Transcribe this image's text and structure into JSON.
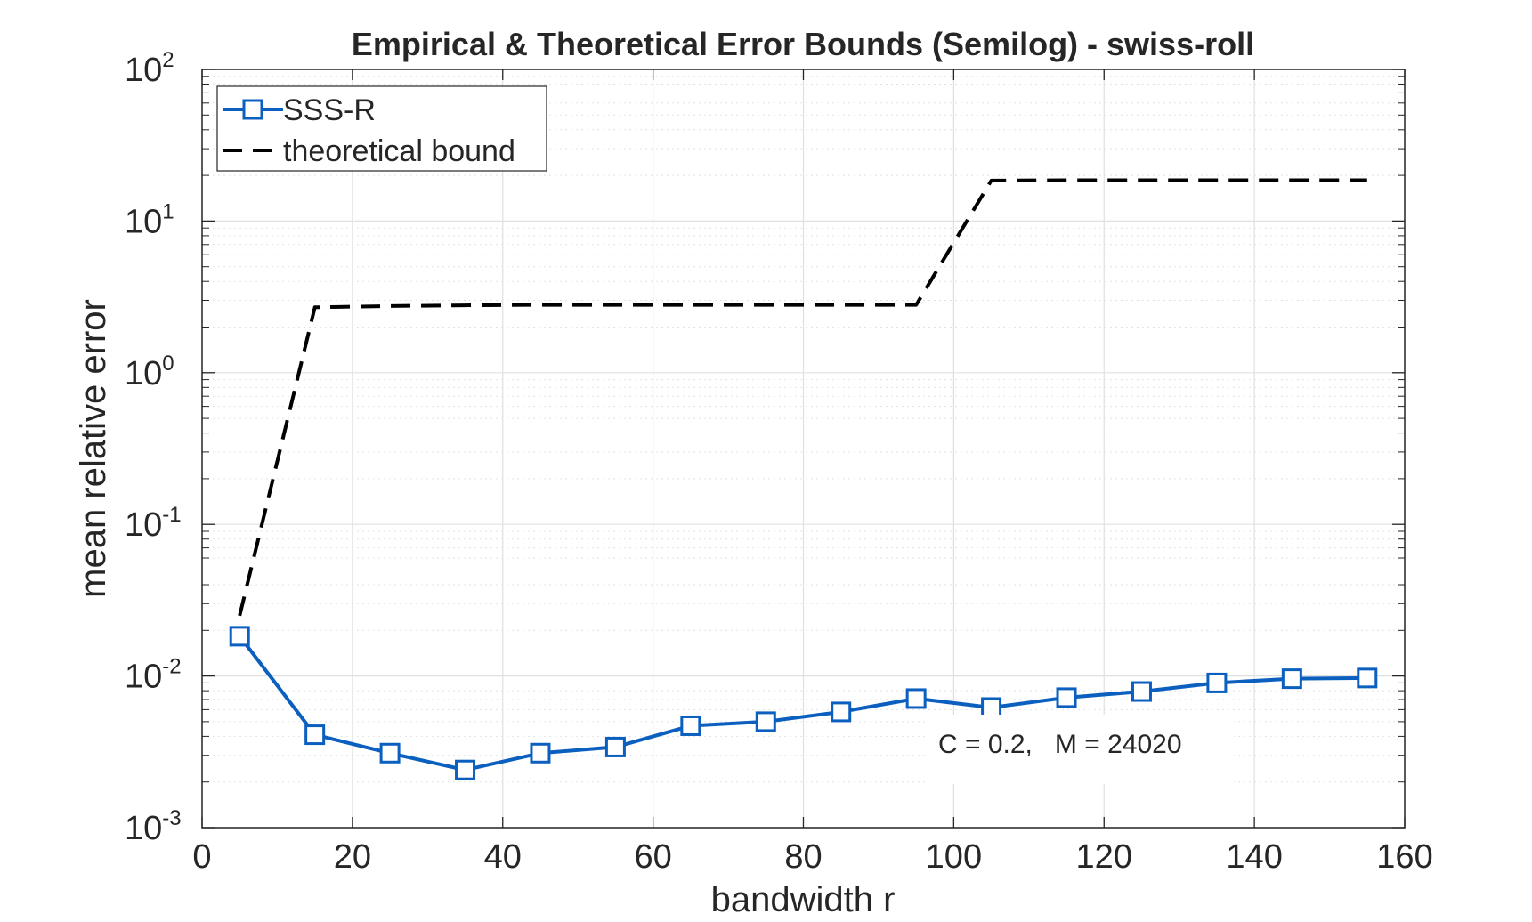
{
  "chart_data": {
    "type": "line",
    "title": "Empirical & Theoretical Error Bounds (Semilog) - swiss-roll",
    "xlabel": "bandwidth r",
    "ylabel": "mean relative error",
    "xlim": [
      0,
      160
    ],
    "ylim": [
      0.001,
      100
    ],
    "yscale": "log",
    "grid": true,
    "minor_grid": true,
    "xticks": [
      0,
      20,
      40,
      60,
      80,
      100,
      120,
      140,
      160
    ],
    "yticks": [
      {
        "base": "10",
        "exp": "-3",
        "value": 0.001
      },
      {
        "base": "10",
        "exp": "-2",
        "value": 0.01
      },
      {
        "base": "10",
        "exp": "-1",
        "value": 0.1
      },
      {
        "base": "10",
        "exp": "0",
        "value": 1
      },
      {
        "base": "10",
        "exp": "1",
        "value": 10
      },
      {
        "base": "10",
        "exp": "2",
        "value": 100
      }
    ],
    "legend_position": "top-left",
    "series": [
      {
        "name": "SSS-R",
        "color": "#0b5fbf",
        "style": "solid",
        "marker": "square",
        "x": [
          5,
          15,
          25,
          35,
          45,
          55,
          65,
          75,
          85,
          95,
          105,
          115,
          125,
          135,
          145,
          155
        ],
        "y": [
          0.0183,
          0.0041,
          0.0031,
          0.0024,
          0.0031,
          0.0034,
          0.0047,
          0.005,
          0.0058,
          0.0071,
          0.0062,
          0.0072,
          0.0079,
          0.009,
          0.0096,
          0.0097
        ]
      },
      {
        "name": "theoretical bound",
        "color": "#000000",
        "style": "dashed",
        "marker": "none",
        "x": [
          5,
          15,
          25,
          35,
          45,
          55,
          65,
          75,
          85,
          95,
          105,
          115,
          125,
          135,
          145,
          155
        ],
        "y": [
          0.025,
          2.7,
          2.75,
          2.78,
          2.8,
          2.8,
          2.8,
          2.8,
          2.8,
          2.8,
          18.5,
          18.6,
          18.6,
          18.6,
          18.6,
          18.6
        ]
      }
    ],
    "annotation": "C = 0.2,   M = 24020"
  }
}
